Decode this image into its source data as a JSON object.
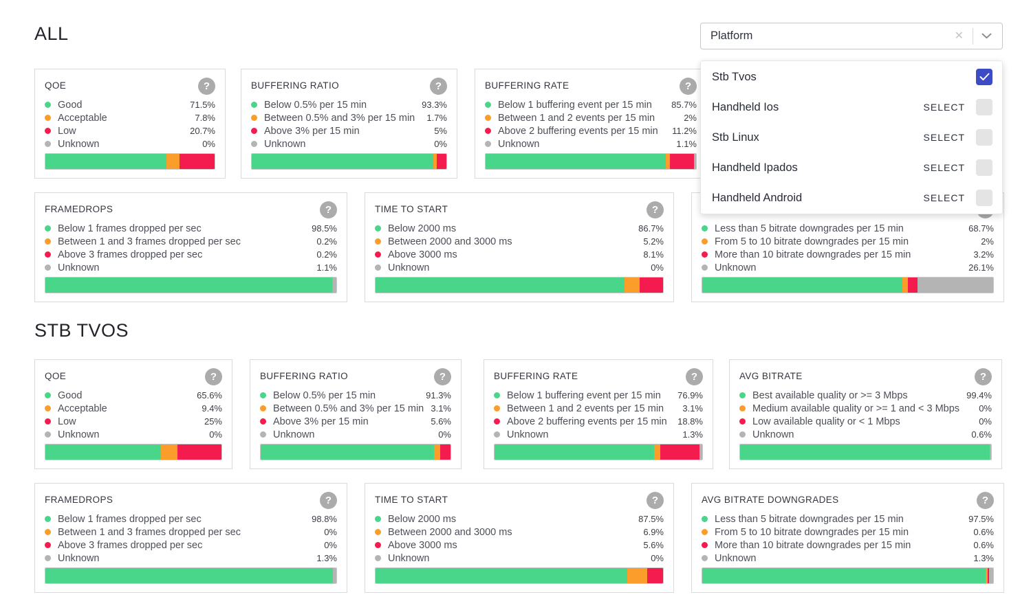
{
  "colors": {
    "green": "#49d58a",
    "orange": "#fb9d2b",
    "red": "#f41c4f",
    "gray": "#b4b4b4",
    "checkbox_checked": "#3d4cc4"
  },
  "icons": {
    "help": "?",
    "clear": "✕",
    "chevron_down": "⌄",
    "check": "✓"
  },
  "filter": {
    "label": "Platform",
    "options": [
      {
        "label": "Stb Tvos",
        "selected": true,
        "action": ""
      },
      {
        "label": "Handheld Ios",
        "selected": false,
        "action": "SELECT"
      },
      {
        "label": "Stb Linux",
        "selected": false,
        "action": "SELECT"
      },
      {
        "label": "Handheld Ipados",
        "selected": false,
        "action": "SELECT"
      },
      {
        "label": "Handheld Android",
        "selected": false,
        "action": "SELECT"
      }
    ]
  },
  "all": {
    "heading": "ALL",
    "cards": [
      {
        "title": "QOE",
        "items": [
          {
            "label": "Good",
            "value": "71.5%",
            "pct": 71.5,
            "color": "green"
          },
          {
            "label": "Acceptable",
            "value": "7.8%",
            "pct": 7.8,
            "color": "orange"
          },
          {
            "label": "Low",
            "value": "20.7%",
            "pct": 20.7,
            "color": "red"
          },
          {
            "label": "Unknown",
            "value": "0%",
            "pct": 0,
            "color": "gray"
          }
        ]
      },
      {
        "title": "BUFFERING RATIO",
        "items": [
          {
            "label": "Below 0.5% per 15 min",
            "value": "93.3%",
            "pct": 93.3,
            "color": "green"
          },
          {
            "label": "Between 0.5% and 3% per 15 min",
            "value": "1.7%",
            "pct": 1.7,
            "color": "orange"
          },
          {
            "label": "Above 3% per 15 min",
            "value": "5%",
            "pct": 5,
            "color": "red"
          },
          {
            "label": "Unknown",
            "value": "0%",
            "pct": 0,
            "color": "gray"
          }
        ]
      },
      {
        "title": "BUFFERING RATE",
        "items": [
          {
            "label": "Below 1 buffering event per 15 min",
            "value": "85.7%",
            "pct": 85.7,
            "color": "green"
          },
          {
            "label": "Between 1 and 2 events per 15 min",
            "value": "2%",
            "pct": 2,
            "color": "orange"
          },
          {
            "label": "Above 2 buffering events per 15 min",
            "value": "11.2%",
            "pct": 11.2,
            "color": "red"
          },
          {
            "label": "Unknown",
            "value": "1.1%",
            "pct": 1.1,
            "color": "gray"
          }
        ]
      },
      {
        "title": "FRAMEDROPS",
        "items": [
          {
            "label": "Below 1 frames dropped per sec",
            "value": "98.5%",
            "pct": 98.5,
            "color": "green"
          },
          {
            "label": "Between 1 and 3 frames dropped per sec",
            "value": "0.2%",
            "pct": 0.2,
            "color": "orange"
          },
          {
            "label": "Above 3 frames dropped per sec",
            "value": "0.2%",
            "pct": 0.2,
            "color": "red"
          },
          {
            "label": "Unknown",
            "value": "1.1%",
            "pct": 1.1,
            "color": "gray"
          }
        ]
      },
      {
        "title": "TIME TO START",
        "items": [
          {
            "label": "Below 2000 ms",
            "value": "86.7%",
            "pct": 86.7,
            "color": "green"
          },
          {
            "label": "Between 2000 and 3000 ms",
            "value": "5.2%",
            "pct": 5.2,
            "color": "orange"
          },
          {
            "label": "Above 3000 ms",
            "value": "8.1%",
            "pct": 8.1,
            "color": "red"
          },
          {
            "label": "Unknown",
            "value": "0%",
            "pct": 0,
            "color": "gray"
          }
        ]
      },
      {
        "title": "AVG BITRATE DOWNGRADES",
        "items": [
          {
            "label": "Less than 5 bitrate downgrades per 15 min",
            "value": "68.7%",
            "pct": 68.7,
            "color": "green"
          },
          {
            "label": "From 5 to 10 bitrate downgrades per 15 min",
            "value": "2%",
            "pct": 2,
            "color": "orange"
          },
          {
            "label": "More than 10 bitrate downgrades per 15 min",
            "value": "3.2%",
            "pct": 3.2,
            "color": "red"
          },
          {
            "label": "Unknown",
            "value": "26.1%",
            "pct": 26.1,
            "color": "gray"
          }
        ]
      }
    ]
  },
  "stb_tvos": {
    "heading": "STB TVOS",
    "cards": [
      {
        "title": "QOE",
        "items": [
          {
            "label": "Good",
            "value": "65.6%",
            "pct": 65.6,
            "color": "green"
          },
          {
            "label": "Acceptable",
            "value": "9.4%",
            "pct": 9.4,
            "color": "orange"
          },
          {
            "label": "Low",
            "value": "25%",
            "pct": 25,
            "color": "red"
          },
          {
            "label": "Unknown",
            "value": "0%",
            "pct": 0,
            "color": "gray"
          }
        ]
      },
      {
        "title": "BUFFERING RATIO",
        "items": [
          {
            "label": "Below 0.5% per 15 min",
            "value": "91.3%",
            "pct": 91.3,
            "color": "green"
          },
          {
            "label": "Between 0.5% and 3% per 15 min",
            "value": "3.1%",
            "pct": 3.1,
            "color": "orange"
          },
          {
            "label": "Above 3% per 15 min",
            "value": "5.6%",
            "pct": 5.6,
            "color": "red"
          },
          {
            "label": "Unknown",
            "value": "0%",
            "pct": 0,
            "color": "gray"
          }
        ]
      },
      {
        "title": "BUFFERING RATE",
        "items": [
          {
            "label": "Below 1 buffering event per 15 min",
            "value": "76.9%",
            "pct": 76.9,
            "color": "green"
          },
          {
            "label": "Between 1 and 2 events per 15 min",
            "value": "3.1%",
            "pct": 3.1,
            "color": "orange"
          },
          {
            "label": "Above 2 buffering events per 15 min",
            "value": "18.8%",
            "pct": 18.8,
            "color": "red"
          },
          {
            "label": "Unknown",
            "value": "1.3%",
            "pct": 1.3,
            "color": "gray"
          }
        ]
      },
      {
        "title": "AVG BITRATE",
        "items": [
          {
            "label": "Best available quality or >= 3 Mbps",
            "value": "99.4%",
            "pct": 99.4,
            "color": "green"
          },
          {
            "label": "Medium available quality or >= 1 and < 3 Mbps",
            "value": "0%",
            "pct": 0,
            "color": "orange"
          },
          {
            "label": "Low available quality or < 1 Mbps",
            "value": "0%",
            "pct": 0,
            "color": "red"
          },
          {
            "label": "Unknown",
            "value": "0.6%",
            "pct": 0.6,
            "color": "gray"
          }
        ]
      },
      {
        "title": "FRAMEDROPS",
        "items": [
          {
            "label": "Below 1 frames dropped per sec",
            "value": "98.8%",
            "pct": 98.8,
            "color": "green"
          },
          {
            "label": "Between 1 and 3 frames dropped per sec",
            "value": "0%",
            "pct": 0,
            "color": "orange"
          },
          {
            "label": "Above 3 frames dropped per sec",
            "value": "0%",
            "pct": 0,
            "color": "red"
          },
          {
            "label": "Unknown",
            "value": "1.3%",
            "pct": 1.3,
            "color": "gray"
          }
        ]
      },
      {
        "title": "TIME TO START",
        "items": [
          {
            "label": "Below 2000 ms",
            "value": "87.5%",
            "pct": 87.5,
            "color": "green"
          },
          {
            "label": "Between 2000 and 3000 ms",
            "value": "6.9%",
            "pct": 6.9,
            "color": "orange"
          },
          {
            "label": "Above 3000 ms",
            "value": "5.6%",
            "pct": 5.6,
            "color": "red"
          },
          {
            "label": "Unknown",
            "value": "0%",
            "pct": 0,
            "color": "gray"
          }
        ]
      },
      {
        "title": "AVG BITRATE DOWNGRADES",
        "items": [
          {
            "label": "Less than 5 bitrate downgrades per 15 min",
            "value": "97.5%",
            "pct": 97.5,
            "color": "green"
          },
          {
            "label": "From 5 to 10 bitrate downgrades per 15 min",
            "value": "0.6%",
            "pct": 0.6,
            "color": "orange"
          },
          {
            "label": "More than 10 bitrate downgrades per 15 min",
            "value": "0.6%",
            "pct": 0.6,
            "color": "red"
          },
          {
            "label": "Unknown",
            "value": "1.3%",
            "pct": 1.3,
            "color": "gray"
          }
        ]
      }
    ]
  }
}
